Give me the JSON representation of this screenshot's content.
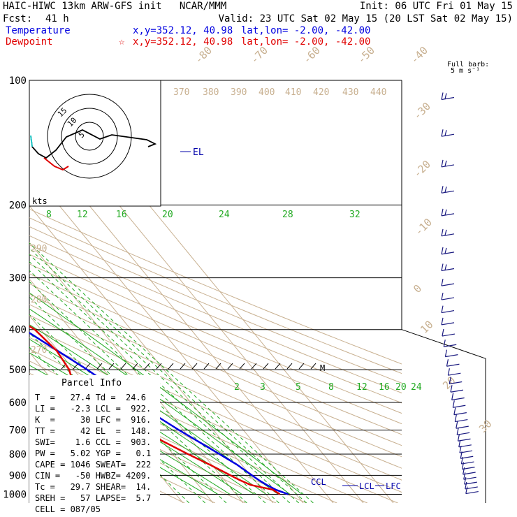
{
  "header": {
    "title": "HAIC-HIWC 13km ARW-GFS init   NCAR/MMM",
    "fcst_label": "Fcst:",
    "fcst_value": "41 h",
    "init": "Init: 06 UTC Fri 01 May 15",
    "valid": "Valid: 23 UTC Sat 02 May 15 (20 LST Sat 02 May 15)",
    "temp_label": "Temperature",
    "temp_xy": "x,y=352.12, 40.98",
    "temp_latlon": "lat,lon= -2.00, -42.00",
    "dew_label": "Dewpoint",
    "dew_xy": "x,y=352.12, 40.98",
    "dew_latlon": "lat,lon= -2.00, -42.00"
  },
  "colors": {
    "temperature": "#0000e0",
    "dewpoint": "#e00000",
    "isotherm": "#c8b090",
    "mixing_ratio": "#22aa22",
    "barb": "#1a1a80",
    "hodo_cyan": "#22cccc"
  },
  "barb_label": [
    "Full barb:",
    "5 m s⁻¹"
  ],
  "el_label": "EL",
  "lcl_label": "LCL",
  "lfc_label": "LFC",
  "ccl_label": "CCL",
  "hodo_kts": "kts",
  "hodo_ring_labels": [
    "5",
    "10",
    "15"
  ],
  "parcel_info": {
    "title": "Parcel Info",
    "rows": [
      "T  =   27.4 Td =  24.6",
      "LI =   -2.3 LCL =  922.",
      "K  =     30 LFC =  916.",
      "TT =     42 EL  =  148.",
      "SWI=    1.6 CCL =  903.",
      "PW =   5.02 YGP =   0.1",
      "CAPE = 1046 SWEAT=  222",
      "CIN =   -50 HWBZ= 4209.",
      "Tc =   29.7 SHEAR=  14.",
      "SREH =   57 LAPSE=  5.7",
      "CELL = 087/05"
    ]
  },
  "chart_data": {
    "type": "skew-t",
    "pressure_ticks": [
      100,
      200,
      300,
      400,
      500,
      600,
      700,
      800,
      900,
      1000
    ],
    "isotherm_labels": [
      "-80",
      "-70",
      "-60",
      "-50",
      "-40",
      "-30",
      "-20",
      "-10",
      "0",
      "10",
      "20",
      "30",
      "40"
    ],
    "theta_labels": [
      "370",
      "380",
      "390",
      "400",
      "410",
      "420",
      "430",
      "440",
      "290",
      "280",
      "270"
    ],
    "mixing_ratio_upper": [
      "8",
      "12",
      "16",
      "20",
      "24",
      "28",
      "32"
    ],
    "mixing_ratio_lower": [
      "2",
      "3",
      "5",
      "8",
      "12",
      "16",
      "20",
      "24"
    ],
    "temperature": [
      [
        1000,
        27.4
      ],
      [
        975,
        24.5
      ],
      [
        950,
        22.8
      ],
      [
        925,
        21.5
      ],
      [
        900,
        20.5
      ],
      [
        850,
        18.5
      ],
      [
        800,
        15.5
      ],
      [
        700,
        8.6
      ],
      [
        600,
        1.5
      ],
      [
        500,
        -5.5
      ],
      [
        400,
        -15.5
      ],
      [
        350,
        -22.5
      ],
      [
        300,
        -30.5
      ],
      [
        250,
        -40
      ],
      [
        200,
        -52
      ],
      [
        175,
        -59
      ],
      [
        150,
        -66
      ],
      [
        125,
        -73
      ],
      [
        100,
        -79
      ]
    ],
    "dewpoint": [
      [
        1000,
        24.6
      ],
      [
        975,
        23.5
      ],
      [
        950,
        17.5
      ],
      [
        925,
        15.2
      ],
      [
        900,
        13.3
      ],
      [
        850,
        9.5
      ],
      [
        800,
        5
      ],
      [
        700,
        -4
      ],
      [
        600,
        -13.5
      ],
      [
        550,
        -14.5
      ],
      [
        500,
        -11.5
      ],
      [
        450,
        -10.5
      ],
      [
        400,
        -12
      ],
      [
        375,
        -15
      ],
      [
        350,
        -20.5
      ],
      [
        300,
        -37
      ],
      [
        250,
        -52
      ],
      [
        225,
        -60
      ],
      [
        200,
        -63
      ],
      [
        175,
        -70
      ],
      [
        150,
        -74
      ],
      [
        125,
        -77
      ],
      [
        100,
        -80
      ]
    ]
  }
}
